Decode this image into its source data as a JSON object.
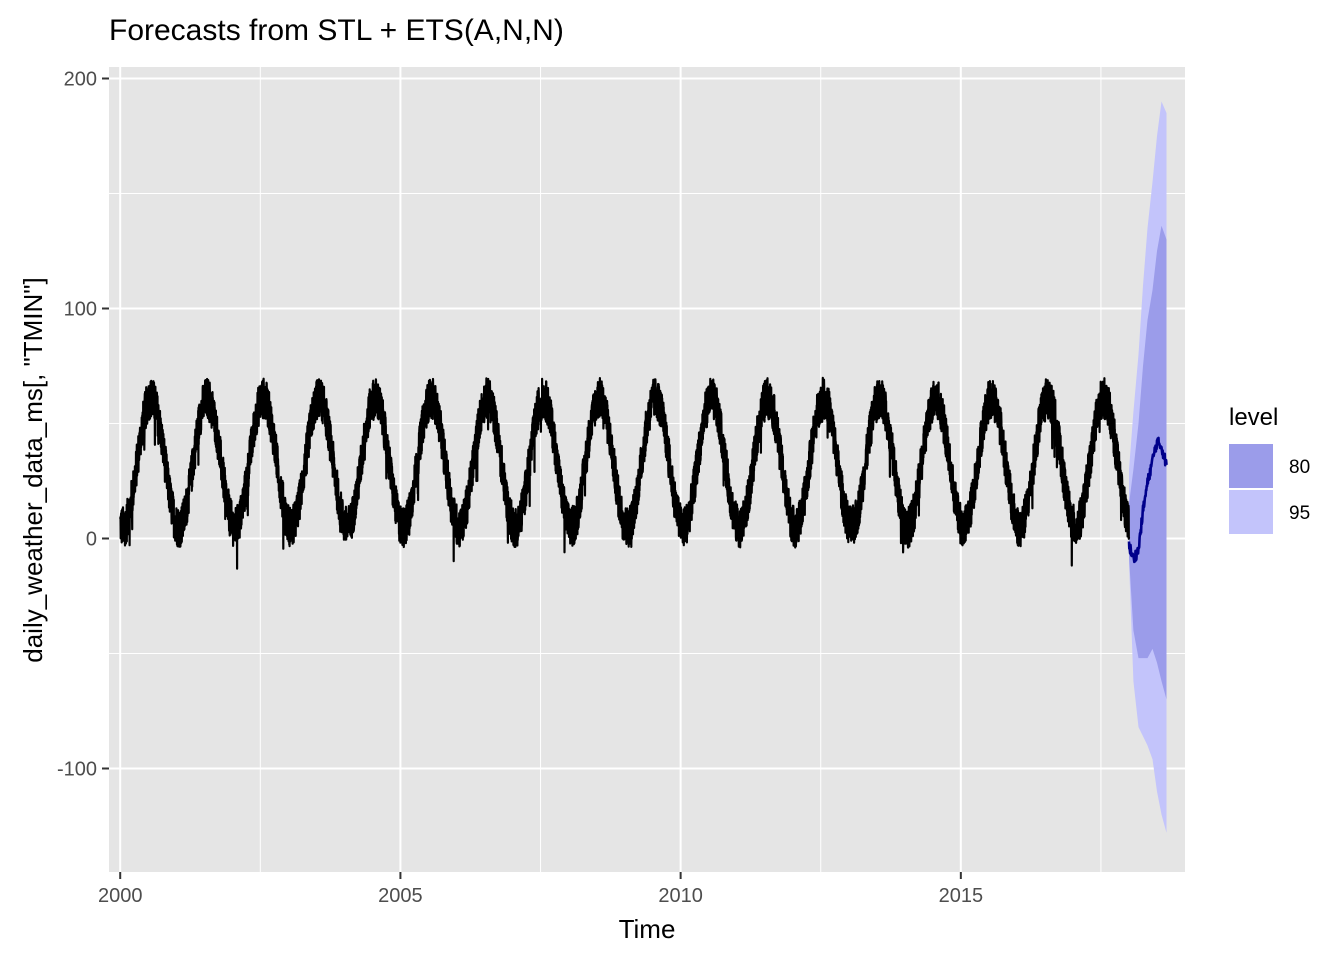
{
  "chart_data": {
    "type": "line",
    "title": "Forecasts from STL +  ETS(A,N,N)",
    "xlabel": "Time",
    "ylabel": "daily_weather_data_ms[, \"TMIN\"]",
    "xlim": [
      1999.8,
      2019.0
    ],
    "ylim": [
      -145,
      205
    ],
    "x_ticks": [
      2000,
      2005,
      2010,
      2015
    ],
    "x_tick_labels": [
      "2000",
      "2005",
      "2010",
      "2015"
    ],
    "y_ticks": [
      -100,
      0,
      100,
      200
    ],
    "y_tick_labels": [
      "-100",
      "0",
      "100",
      "200"
    ],
    "grid": true,
    "legend_position": "right",
    "legend": {
      "title": "level",
      "items": [
        {
          "label": "80",
          "color": "#9b9cea"
        },
        {
          "label": "95",
          "color": "#c3c4fb"
        }
      ]
    },
    "series": [
      {
        "role": "history",
        "color": "#000000",
        "x_start": 2000.0,
        "x_end": 2018.0,
        "seasonal_mean": 33,
        "seasonal_amplitude": 28,
        "trough_phase": 0.05,
        "noise_range": 9,
        "y_max_observed": 75,
        "y_min_observed": -16
      },
      {
        "role": "forecast",
        "color": "#00008b",
        "x": [
          2018.0,
          2018.08,
          2018.17,
          2018.25,
          2018.33,
          2018.42,
          2018.5,
          2018.58,
          2018.67
        ],
        "values": [
          -3,
          -9,
          -5,
          12,
          24,
          34,
          42,
          40,
          32
        ]
      }
    ],
    "intervals": [
      {
        "level": "95",
        "color": "#c3c4fb",
        "x": [
          2018.0,
          2018.08,
          2018.17,
          2018.25,
          2018.33,
          2018.42,
          2018.5,
          2018.58,
          2018.67
        ],
        "lower": [
          -10,
          -62,
          -82,
          -86,
          -90,
          -96,
          -110,
          -120,
          -128
        ],
        "upper": [
          30,
          55,
          80,
          110,
          135,
          155,
          175,
          190,
          185
        ]
      },
      {
        "level": "80",
        "color": "#9b9cea",
        "x": [
          2018.0,
          2018.08,
          2018.17,
          2018.25,
          2018.33,
          2018.42,
          2018.5,
          2018.58,
          2018.67
        ],
        "lower": [
          -8,
          -40,
          -52,
          -52,
          -52,
          -48,
          -54,
          -62,
          -70
        ],
        "upper": [
          15,
          30,
          50,
          75,
          95,
          108,
          125,
          136,
          130
        ]
      }
    ]
  }
}
